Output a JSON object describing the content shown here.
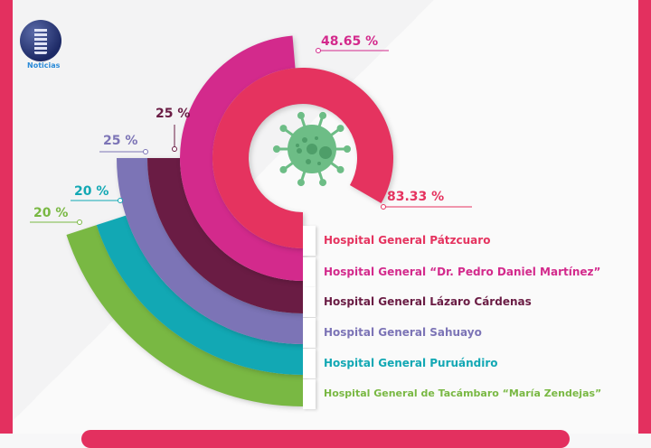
{
  "logo": {
    "text": "Noticias"
  },
  "colors": {
    "border": "#e3305f",
    "virus": "#6dbd86"
  },
  "icons": {
    "center": "virus-icon"
  },
  "chart_data": {
    "type": "radial-bar",
    "value_unit": "percent of full circle",
    "categories": [
      "Hospital General Pátzcuaro",
      "Hospital General “Dr. Pedro Daniel Martínez”",
      "Hospital General Lázaro Cárdenas",
      "Hospital General Sahuayo",
      "Hospital General Puruándiro",
      "Hospital General de Tacámbaro “María Zendejas”"
    ],
    "values": [
      83.33,
      48.65,
      25,
      25,
      20,
      20
    ],
    "value_labels": [
      "83.33 %",
      "48.65 %",
      "25 %",
      "25 %",
      "20 %",
      "20 %"
    ],
    "colors": [
      "#e5335f",
      "#d32a8c",
      "#6a1c44",
      "#7c74b6",
      "#12a8b4",
      "#79b843"
    ]
  }
}
